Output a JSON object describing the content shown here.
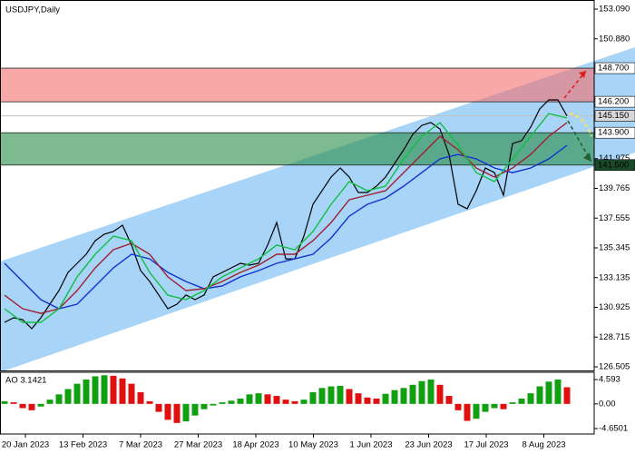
{
  "chart_data": [
    {
      "type": "line",
      "title": "USDJPY,Daily",
      "ylim": [
        126.235,
        153.765
      ],
      "yticks": [
        {
          "value": 153.09,
          "label": "153.090"
        },
        {
          "value": 150.88,
          "label": "150.880"
        },
        {
          "value": 141.975,
          "label": "141.975"
        },
        {
          "value": 139.765,
          "label": "139.765"
        },
        {
          "value": 137.555,
          "label": "137.555"
        },
        {
          "value": 135.345,
          "label": "135.345"
        },
        {
          "value": 133.135,
          "label": "133.135"
        },
        {
          "value": 130.925,
          "label": "130.925"
        },
        {
          "value": 128.715,
          "label": "128.715"
        },
        {
          "value": 126.505,
          "label": "126.505"
        }
      ],
      "grid": false,
      "zones": [
        {
          "range": [
            {
              "value": 146.2,
              "label": "146.200"
            },
            {
              "value": 148.7,
              "label": "148.700"
            }
          ],
          "color": "rgba(245,110,110,0.6)"
        },
        {
          "range": [
            {
              "value": 141.5,
              "label": "141.500"
            },
            {
              "value": 143.9,
              "label": "143.900"
            }
          ],
          "color": "rgba(40,140,70,0.6)"
        }
      ],
      "last": {
        "value": 145.15,
        "label": "145.150"
      },
      "series": [
        {
          "color": "#000000",
          "values": [
            129.81,
            130.15,
            130.01,
            129.34,
            130.15,
            131.16,
            132.17,
            133.52,
            134.2,
            134.87,
            135.88,
            136.36,
            136.56,
            137.03,
            135.55,
            133.66,
            132.85,
            131.84,
            130.82,
            131.16,
            131.84,
            131.5,
            131.84,
            133.19,
            133.52,
            133.86,
            134.2,
            134.06,
            134.2,
            135.55,
            137.23,
            134.53,
            134.53,
            136.22,
            138.58,
            139.59,
            140.61,
            141.28,
            140.61,
            139.46,
            139.46,
            139.93,
            140.61,
            141.62,
            142.63,
            143.78,
            144.45,
            144.66,
            144.18,
            142.29,
            138.58,
            138.25,
            139.59,
            141.28,
            140.94,
            139.26,
            143.1,
            143.31,
            144.32,
            145.67,
            146.34,
            146.34,
            145.15
          ]
        },
        {
          "color": "#1030d0",
          "values": [
            134.2,
            132.85,
            131.5,
            130.82,
            131.16,
            132.51,
            133.86,
            134.87,
            134.53,
            133.52,
            132.85,
            132.31,
            132.51,
            133.19,
            133.66,
            134.2,
            134.53,
            134.87,
            136.08,
            137.7,
            138.58,
            139.05,
            139.93,
            140.94,
            141.96,
            142.29,
            141.96,
            141.28,
            140.94,
            141.28,
            141.96,
            142.97
          ]
        },
        {
          "color": "#a02030",
          "values": [
            131.83,
            130.82,
            130.48,
            130.82,
            132.17,
            133.86,
            135.21,
            135.68,
            134.87,
            133.19,
            132.17,
            132.31,
            132.85,
            133.52,
            134.06,
            134.87,
            134.87,
            135.88,
            137.23,
            138.92,
            139.26,
            139.59,
            140.94,
            142.29,
            143.64,
            142.63,
            141.28,
            140.61,
            141.28,
            142.29,
            143.64,
            144.65
          ]
        },
        {
          "color": "#10c040",
          "values": [
            130.82,
            129.81,
            129.81,
            130.82,
            133.19,
            134.87,
            136.22,
            135.88,
            133.52,
            131.83,
            131.5,
            132.17,
            133.19,
            133.86,
            134.53,
            135.55,
            135.21,
            136.56,
            138.58,
            140.27,
            139.59,
            139.93,
            141.96,
            143.64,
            144.65,
            142.97,
            140.94,
            140.27,
            141.96,
            143.64,
            145.33,
            144.99
          ]
        }
      ]
    },
    {
      "type": "bar",
      "title": "AO 3.1421",
      "ylim": [
        -5.68,
        5.96
      ],
      "yticks": [
        4.593,
        {
          "value": 0,
          "label": "0.00"
        },
        -4.6501
      ],
      "up_color": "#10a010",
      "down_color": "#e01010",
      "values": [
        0.5,
        0.3,
        -0.8,
        -1.2,
        -0.5,
        0.8,
        1.8,
        2.8,
        3.8,
        4.6,
        5.2,
        5.4,
        5.3,
        4.8,
        3.8,
        2.2,
        0.5,
        -1.5,
        -3.0,
        -3.6,
        -3.3,
        -2.2,
        -1.0,
        -0.3,
        0.3,
        0.6,
        1.0,
        1.8,
        2.0,
        1.8,
        1.5,
        0.8,
        0.5,
        0.8,
        2.2,
        3.0,
        3.3,
        3.4,
        2.8,
        2.0,
        1.2,
        1.0,
        1.9,
        2.6,
        3.0,
        3.6,
        4.3,
        4.6,
        3.6,
        1.5,
        -1.2,
        -3.2,
        -2.8,
        -1.5,
        -0.8,
        -1.0,
        0.3,
        1.0,
        2.0,
        3.3,
        4.2,
        4.6,
        3.1421
      ],
      "x_labels": [
        "20 Jan 2023",
        "13 Feb 2023",
        "7 Mar 2023",
        "27 Mar 2023",
        "18 Apr 2023",
        "10 May 2023",
        "1 Jun 2023",
        "23 Jun 2023",
        "17 Jul 2023",
        "8 Aug 2023"
      ]
    }
  ]
}
